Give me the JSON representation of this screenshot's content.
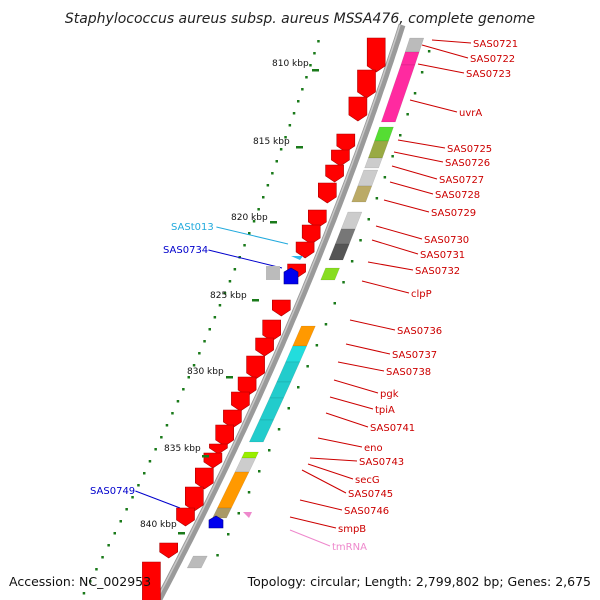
{
  "title": "Staphylococcus aureus subsp. aureus MSSA476, complete genome",
  "footer": {
    "accession": "Accession: NC_002953",
    "topology": "Topology: circular; Length: 2,799,802 bp; Genes: 2,675"
  },
  "colors": {
    "forward_gene": "#ff0000",
    "reverse_gene": "#0000ee",
    "rna_blue": "#33bbee",
    "tmrna": "#ee88cc",
    "backbone": "#9a9a9a",
    "tick": "#1a7a1a",
    "label_red": "#cc0000",
    "label_blue": "#0000cc",
    "label_cyan": "#22aadd",
    "label_pink": "#ee88cc"
  },
  "scale_labels": [
    "810 kbp",
    "815 kbp",
    "820 kbp",
    "825 kbp",
    "830 kbp",
    "835 kbp",
    "840 kbp"
  ],
  "gene_labels": [
    {
      "text": "SAS0721",
      "color": "label_red"
    },
    {
      "text": "SAS0722",
      "color": "label_red"
    },
    {
      "text": "SAS0723",
      "color": "label_red"
    },
    {
      "text": "uvrA",
      "color": "label_red"
    },
    {
      "text": "SAS0725",
      "color": "label_red"
    },
    {
      "text": "SAS0726",
      "color": "label_red"
    },
    {
      "text": "SAS0727",
      "color": "label_red"
    },
    {
      "text": "SAS0728",
      "color": "label_red"
    },
    {
      "text": "SAS0729",
      "color": "label_red"
    },
    {
      "text": "SAS0730",
      "color": "label_red"
    },
    {
      "text": "SAS0731",
      "color": "label_red"
    },
    {
      "text": "SAS0732",
      "color": "label_red"
    },
    {
      "text": "clpP",
      "color": "label_red"
    },
    {
      "text": "SAS0736",
      "color": "label_red"
    },
    {
      "text": "SAS0737",
      "color": "label_red"
    },
    {
      "text": "SAS0738",
      "color": "label_red"
    },
    {
      "text": "pgk",
      "color": "label_red"
    },
    {
      "text": "tpiA",
      "color": "label_red"
    },
    {
      "text": "SAS0741",
      "color": "label_red"
    },
    {
      "text": "eno",
      "color": "label_red"
    },
    {
      "text": "SAS0743",
      "color": "label_red"
    },
    {
      "text": "secG",
      "color": "label_red"
    },
    {
      "text": "SAS0745",
      "color": "label_red"
    },
    {
      "text": "SAS0746",
      "color": "label_red"
    },
    {
      "text": "smpB",
      "color": "label_red"
    },
    {
      "text": "tmRNA",
      "color": "label_pink"
    },
    {
      "text": "SASt013",
      "color": "label_cyan"
    },
    {
      "text": "SAS0734",
      "color": "label_blue"
    },
    {
      "text": "SAS0749",
      "color": "label_blue"
    }
  ]
}
